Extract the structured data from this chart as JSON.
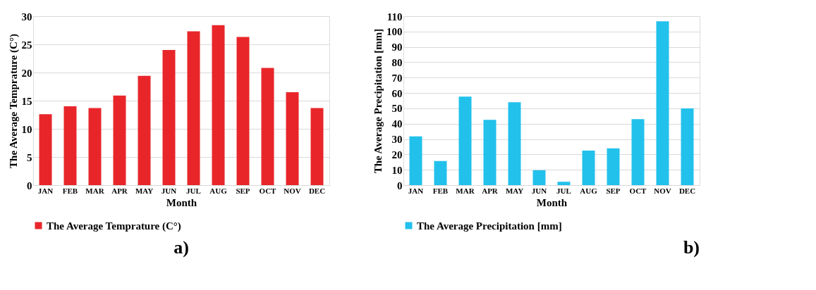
{
  "chart_data": [
    {
      "type": "bar",
      "xlabel": "Month",
      "ylabel": "The Average Temprature (C°)",
      "categories": [
        "JAN",
        "FEB",
        "MAR",
        "APR",
        "MAY",
        "JUN",
        "JUL",
        "AUG",
        "SEP",
        "OCT",
        "NOV",
        "DEC"
      ],
      "series": [
        {
          "name": "The Average Temprature (C°)",
          "color": "#e8262a",
          "values": [
            12.6,
            14.0,
            13.7,
            15.9,
            19.4,
            24.0,
            27.3,
            28.4,
            26.3,
            20.8,
            16.5,
            13.7
          ]
        }
      ],
      "ylim": [
        0,
        30
      ],
      "yticks": [
        0,
        5,
        10,
        15,
        20,
        25,
        30
      ],
      "grid": "y",
      "legend": "bottom",
      "annotations": [
        "a)"
      ]
    },
    {
      "type": "bar",
      "xlabel": "Month",
      "ylabel": "The Average Precipitation [mm]",
      "categories": [
        "JAN",
        "FEB",
        "MAR",
        "APR",
        "MAY",
        "JUN",
        "JUL",
        "AUG",
        "SEP",
        "OCT",
        "NOV",
        "DEC"
      ],
      "series": [
        {
          "name": "The Average Precipitation [mm]",
          "color": "#22c1ec",
          "values": [
            31.7,
            15.7,
            57.6,
            42.5,
            54.0,
            9.7,
            2.2,
            22.5,
            24.0,
            43.0,
            106.7,
            50.0
          ]
        }
      ],
      "ylim": [
        0,
        110
      ],
      "yticks": [
        0,
        10,
        20,
        30,
        40,
        50,
        60,
        70,
        80,
        90,
        100,
        110
      ],
      "grid": "y",
      "legend": "bottom",
      "annotations": [
        "b)"
      ]
    }
  ]
}
